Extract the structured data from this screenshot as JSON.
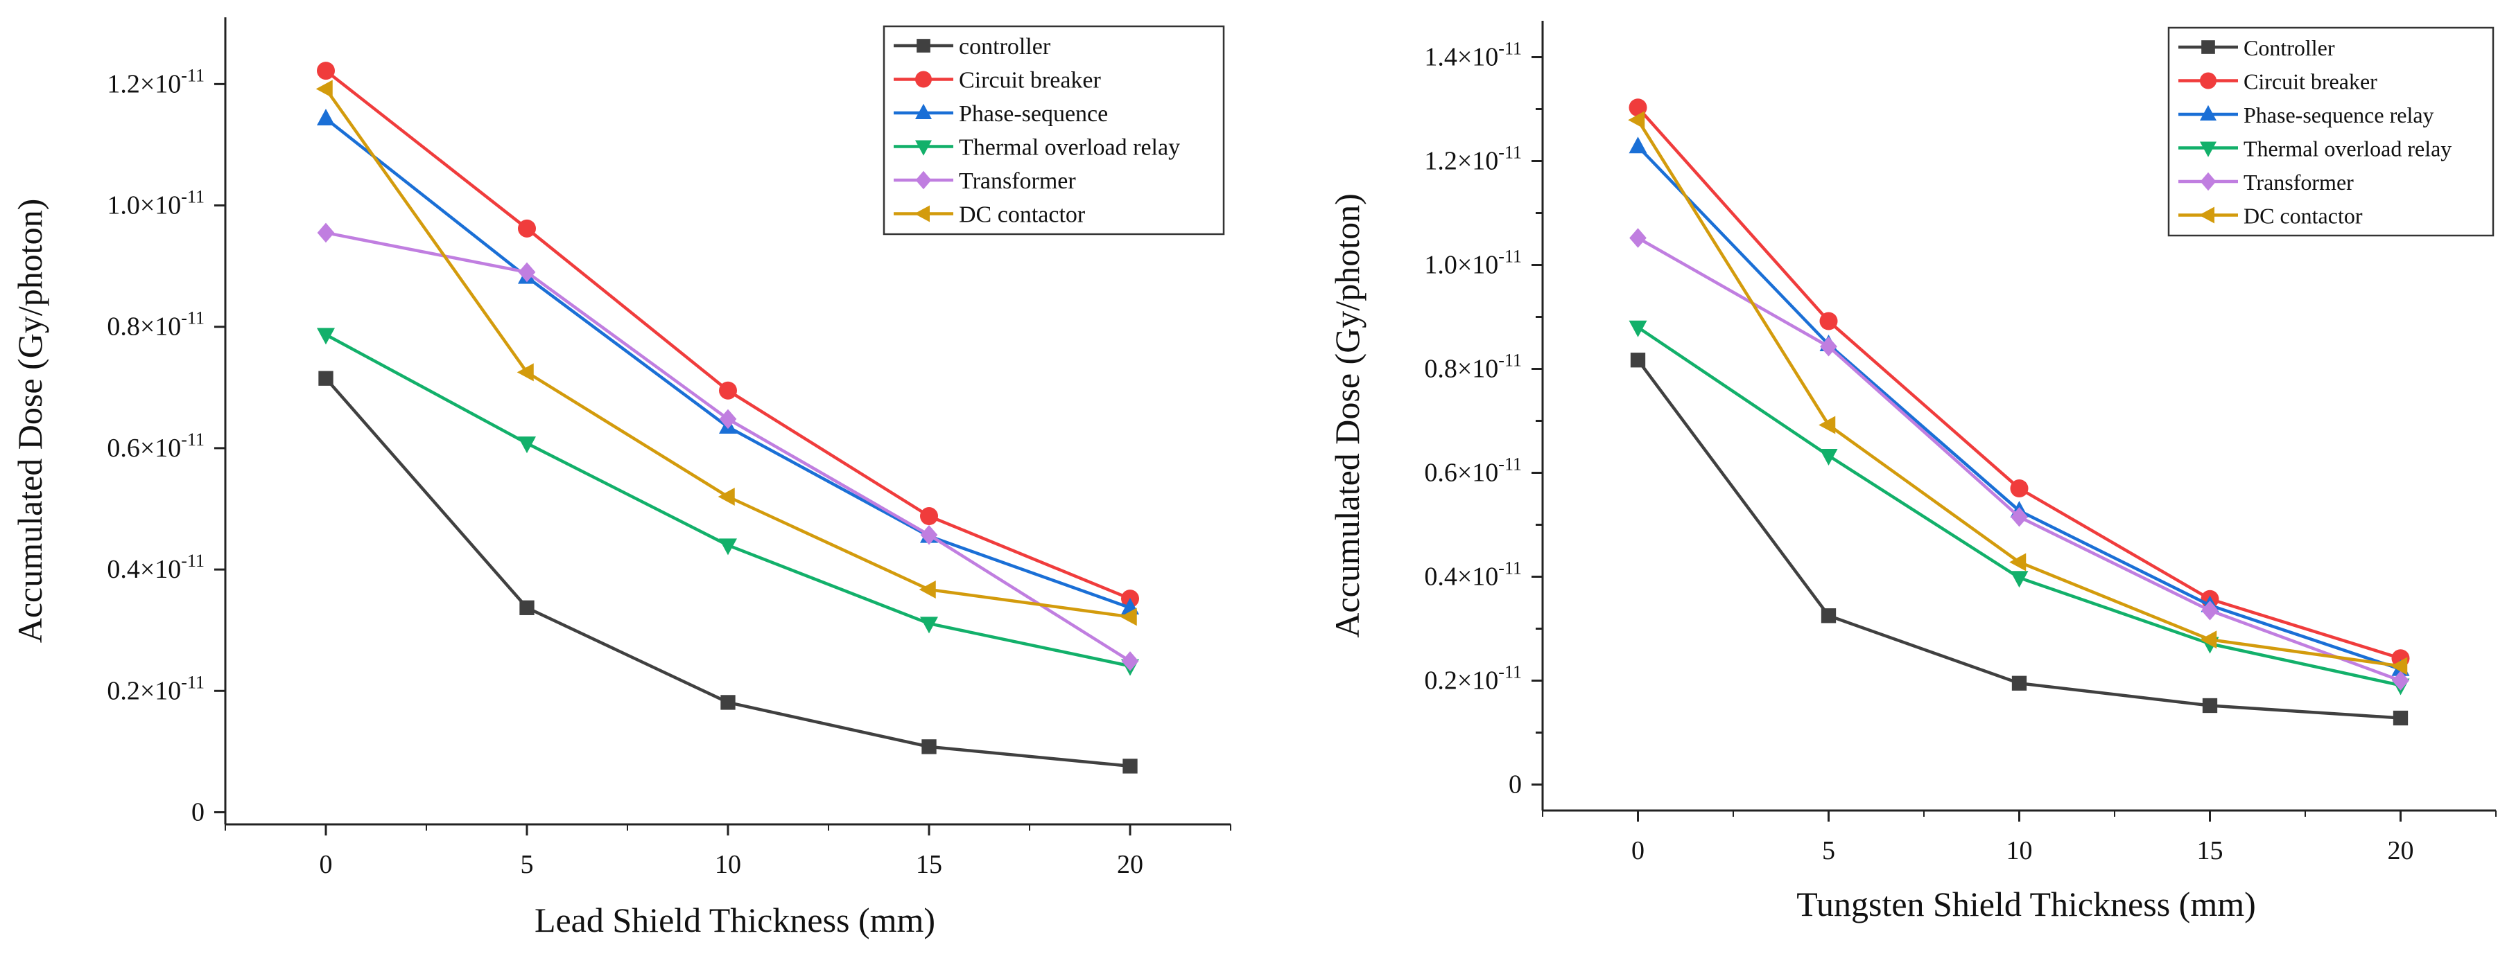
{
  "chart_data": [
    {
      "type": "line",
      "title": "",
      "xlabel": "Lead Shield Thickness (mm)",
      "ylabel": "Accumulated Dose (Gy/photon)",
      "x": [
        0,
        5,
        10,
        15,
        20
      ],
      "xticks": [
        "0",
        "5",
        "10",
        "15",
        "20"
      ],
      "xlim": [
        -2.5,
        22.5
      ],
      "ylim": [
        -2e-13,
        1.31e-11
      ],
      "yticks": [
        {
          "value": 0,
          "label": "0"
        },
        {
          "value": 2e-12,
          "label": "0.2×10",
          "exp": "-11"
        },
        {
          "value": 4e-12,
          "label": "0.4×10",
          "exp": "-11"
        },
        {
          "value": 6e-12,
          "label": "0.6×10",
          "exp": "-11"
        },
        {
          "value": 8e-12,
          "label": "0.8×10",
          "exp": "-11"
        },
        {
          "value": 1e-11,
          "label": "1.0×10",
          "exp": "-11"
        },
        {
          "value": 1.2e-11,
          "label": "1.2×10",
          "exp": "-11"
        }
      ],
      "legend_position": "top-right",
      "series": [
        {
          "name": "controller",
          "color": "#404040",
          "marker": "square",
          "values": [
            7.15e-12,
            3.37e-12,
            1.81e-12,
            1.08e-12,
            7.6e-13
          ]
        },
        {
          "name": " Circuit breaker",
          "color": "#f03c3c",
          "marker": "circle",
          "values": [
            1.222e-11,
            9.62e-12,
            6.95e-12,
            4.88e-12,
            3.52e-12
          ]
        },
        {
          "name": "Phase-sequence",
          "color": "#1a6fd6",
          "marker": "triangle-up",
          "values": [
            1.143e-11,
            8.82e-12,
            6.35e-12,
            4.55e-12,
            3.37e-12
          ]
        },
        {
          "name": "Thermal overload relay",
          "color": "#12b06a",
          "marker": "triangle-down",
          "values": [
            7.87e-12,
            6.08e-12,
            4.4e-12,
            3.11e-12,
            2.41e-12
          ]
        },
        {
          "name": "Transformer",
          "color": "#c07ee0",
          "marker": "diamond",
          "values": [
            9.55e-12,
            8.9e-12,
            6.48e-12,
            4.57e-12,
            2.49e-12
          ]
        },
        {
          "name": "DC contactor",
          "color": "#d39b0c",
          "marker": "triangle-left",
          "values": [
            1.192e-11,
            7.25e-12,
            5.2e-12,
            3.67e-12,
            3.22e-12
          ]
        }
      ]
    },
    {
      "type": "line",
      "title": "",
      "xlabel": "Tungsten Shield Thickness (mm)",
      "ylabel": "Accumulated Dose (Gy/photon)",
      "x": [
        0,
        5,
        10,
        15,
        20
      ],
      "xticks": [
        "0",
        "5",
        "10",
        "15",
        "20"
      ],
      "xlim": [
        -2.5,
        22.5
      ],
      "ylim": [
        -5e-13,
        1.47e-11
      ],
      "yticks": [
        {
          "value": 0,
          "label": "0"
        },
        {
          "value": 1e-12,
          "label": ""
        },
        {
          "value": 2e-12,
          "label": "0.2×10",
          "exp": "-11"
        },
        {
          "value": 3e-12,
          "label": ""
        },
        {
          "value": 4e-12,
          "label": "0.4×10",
          "exp": "-11"
        },
        {
          "value": 5e-12,
          "label": ""
        },
        {
          "value": 6e-12,
          "label": "0.6×10",
          "exp": "-11"
        },
        {
          "value": 7e-12,
          "label": ""
        },
        {
          "value": 8e-12,
          "label": "0.8×10",
          "exp": "-11"
        },
        {
          "value": 9e-12,
          "label": ""
        },
        {
          "value": 1e-11,
          "label": "1.0×10",
          "exp": "-11"
        },
        {
          "value": 1.1e-11,
          "label": ""
        },
        {
          "value": 1.2e-11,
          "label": "1.2×10",
          "exp": "-11"
        },
        {
          "value": 1.3e-11,
          "label": ""
        },
        {
          "value": 1.4e-11,
          "label": "1.4×10",
          "exp": "-11"
        }
      ],
      "legend_position": "top-right",
      "series": [
        {
          "name": "Controller",
          "color": "#404040",
          "marker": "square",
          "values": [
            8.17e-12,
            3.25e-12,
            1.95e-12,
            1.52e-12,
            1.28e-12
          ]
        },
        {
          "name": "Circuit breaker",
          "color": "#f03c3c",
          "marker": "circle",
          "values": [
            1.303e-11,
            8.92e-12,
            5.7e-12,
            3.57e-12,
            2.43e-12
          ]
        },
        {
          "name": "Phase-sequence  relay",
          "color": "#1a6fd6",
          "marker": "triangle-up",
          "values": [
            1.228e-11,
            8.47e-12,
            5.27e-12,
            3.45e-12,
            2.22e-12
          ]
        },
        {
          "name": "Thermal overload relay",
          "color": "#12b06a",
          "marker": "triangle-down",
          "values": [
            8.8e-12,
            6.33e-12,
            3.98e-12,
            2.71e-12,
            1.91e-12
          ]
        },
        {
          "name": "Transformer",
          "color": "#c07ee0",
          "marker": "diamond",
          "values": [
            1.052e-11,
            8.43e-12,
            5.15e-12,
            3.35e-12,
            2e-12
          ]
        },
        {
          "name": "DC contactor",
          "color": "#d39b0c",
          "marker": "triangle-left",
          "values": [
            1.279e-11,
            6.92e-12,
            4.28e-12,
            2.79e-12,
            2.28e-12
          ]
        }
      ]
    }
  ]
}
